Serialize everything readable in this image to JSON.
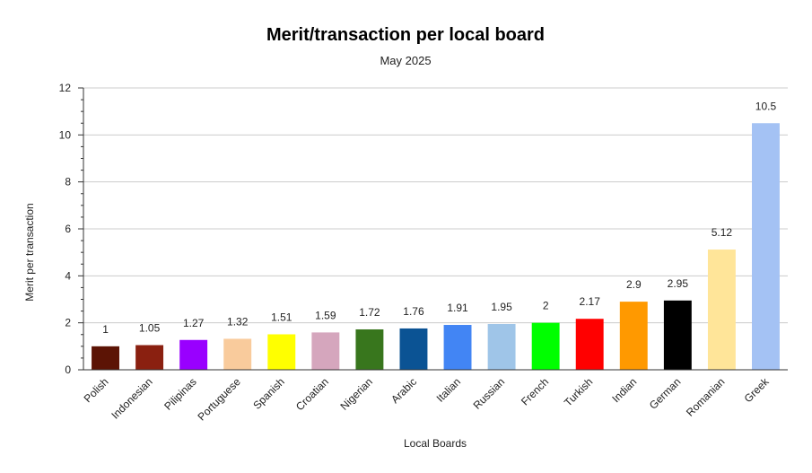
{
  "chart_data": {
    "type": "bar",
    "title": "Merit/transaction per local board",
    "subtitle": "May 2025",
    "xlabel": "Local Boards",
    "ylabel": "Merit per transaction",
    "ylim": [
      0,
      12
    ],
    "yticks": [
      0,
      2,
      4,
      6,
      8,
      10,
      12
    ],
    "grid": true,
    "legend": "none",
    "categories": [
      "Polish",
      "Indonesian",
      "Pilipinas",
      "Portuguese",
      "Spanish",
      "Croatian",
      "Nigerian",
      "Arabic",
      "Italian",
      "Russian",
      "French",
      "Turkish",
      "Indian",
      "German",
      "Romanian",
      "Greek"
    ],
    "values": [
      1,
      1.05,
      1.27,
      1.32,
      1.51,
      1.59,
      1.72,
      1.76,
      1.91,
      1.95,
      2,
      2.17,
      2.9,
      2.95,
      5.12,
      10.5
    ],
    "data_labels": [
      "1",
      "1.05",
      "1.27",
      "1.32",
      "1.51",
      "1.59",
      "1.72",
      "1.76",
      "1.91",
      "1.95",
      "2",
      "2.17",
      "2.9",
      "2.95",
      "5.12",
      "10.5"
    ],
    "colors": [
      "#5c1405",
      "#8a2010",
      "#9900ff",
      "#f9cb9c",
      "#ffff00",
      "#d5a6bd",
      "#38761d",
      "#0b5394",
      "#4285f4",
      "#9fc5e8",
      "#00ff00",
      "#ff0000",
      "#ff9900",
      "#000000",
      "#ffe599",
      "#a4c2f4"
    ]
  }
}
